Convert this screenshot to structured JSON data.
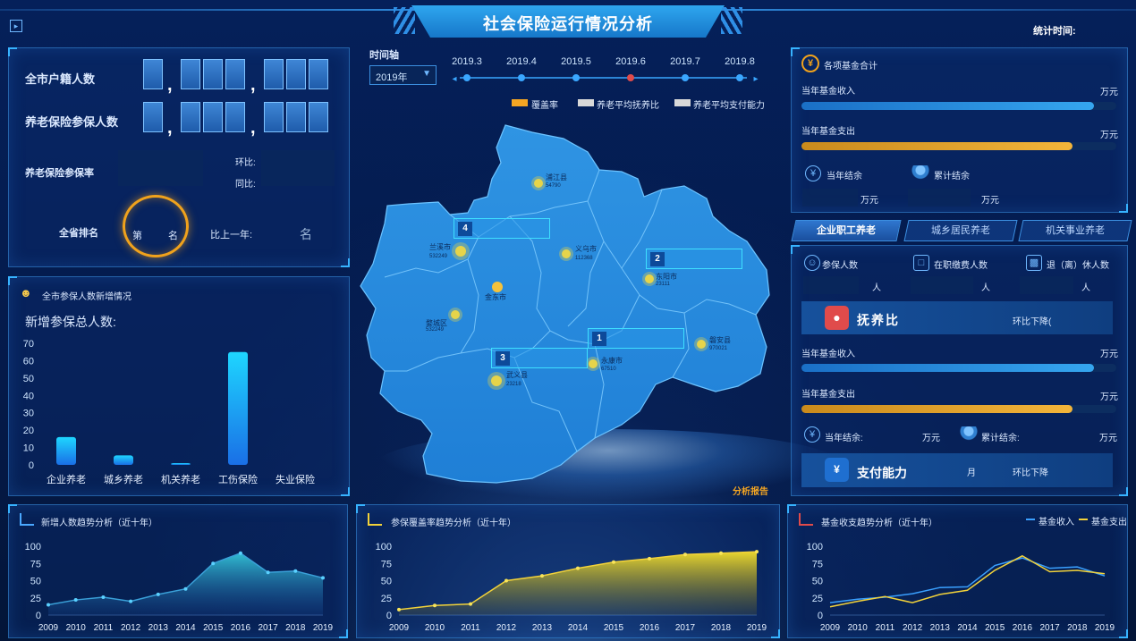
{
  "header": {
    "title": "社会保险运行情况分析",
    "stat_time_label": "统计时间:",
    "menu_icon": "menu-toggle-icon"
  },
  "left_top": {
    "residents_label": "全市户籍人数",
    "pension_insured_label": "养老保险参保人数",
    "coverage_label": "养老保险参保率",
    "mom_label": "环比:",
    "yoy_label": "同比:",
    "rank_label": "全省排名",
    "rank_prefix": "第",
    "rank_suffix": "名",
    "vs_last_year_label": "比上一年:",
    "vs_last_year_suffix": "名"
  },
  "left_mid": {
    "title": "全市参保人数新增情况",
    "total_label": "新增参保总人数:",
    "chart_data": {
      "type": "bar",
      "categories": [
        "企业养老",
        "城乡养老",
        "机关养老",
        "工伤保险",
        "失业保险"
      ],
      "values": [
        16,
        5.5,
        1,
        65,
        0
      ],
      "ylim": [
        0,
        70
      ],
      "yticks": [
        0,
        10,
        20,
        30,
        40,
        50,
        60,
        70
      ]
    }
  },
  "center": {
    "timeline_label": "时间轴",
    "year_select": "2019年",
    "timeline_months": [
      "2019.3",
      "2019.4",
      "2019.5",
      "2019.6",
      "2019.7",
      "2019.8"
    ],
    "active_month_index": 3,
    "legend": [
      {
        "label": "覆盖率",
        "color": "#f5a623"
      },
      {
        "label": "养老平均抚养比",
        "color": "#d9d9d9"
      },
      {
        "label": "养老平均支付能力",
        "color": "#d9d9d9"
      }
    ],
    "cities": [
      {
        "name": "浦江县",
        "value": "54790"
      },
      {
        "name": "兰溪市",
        "value": "532249"
      },
      {
        "name": "义乌市",
        "value": "112368"
      },
      {
        "name": "东阳市",
        "value": "23111"
      },
      {
        "name": "金东市",
        "value": ""
      },
      {
        "name": "婺城区",
        "value": "532249"
      },
      {
        "name": "磐安县",
        "value": "970021"
      },
      {
        "name": "永康市",
        "value": "67510"
      },
      {
        "name": "武义县",
        "value": "23218"
      }
    ],
    "rank_tags": [
      "4",
      "2",
      "1",
      "3"
    ],
    "report_link": "分析报告"
  },
  "right_top": {
    "title": "各项基金合计",
    "income_label": "当年基金收入",
    "expense_label": "当年基金支出",
    "unit": "万元",
    "income_pct": 0.93,
    "expense_pct": 0.86,
    "balance_label": "当年结余",
    "cumulative_label": "累计结余",
    "balance_unit": "万元",
    "cumulative_unit": "万元"
  },
  "right_tabs": [
    "企业职工养老",
    "城乡居民养老",
    "机关事业养老"
  ],
  "right_mid": {
    "insured_label": "参保人数",
    "contrib_label": "在职缴费人数",
    "retired_label": "退（离）休人数",
    "person_unit": "人",
    "dependency_label": "抚养比",
    "dependency_trend": "环比下降(",
    "income_label": "当年基金收入",
    "expense_label": "当年基金支出",
    "unit": "万元",
    "income_pct": 0.93,
    "expense_pct": 0.86,
    "balance_label": "当年结余:",
    "cumulative_label": "累计结余:",
    "payment_label": "支付能力",
    "payment_unit": "月",
    "payment_trend": "环比下降"
  },
  "bottom": {
    "chart1_title": "新增人数趋势分析（近十年）",
    "chart2_title": "参保覆盖率趋势分析（近十年）",
    "chart3_title": "基金收支趋势分析（近十年）",
    "chart3_legend": [
      "基金收入",
      "基金支出"
    ]
  },
  "chart_data": [
    {
      "type": "area",
      "title": "新增人数趋势分析（近十年）",
      "x": [
        "2009",
        "2010",
        "2011",
        "2012",
        "2013",
        "2014",
        "2015",
        "2016",
        "2017",
        "2018",
        "2019"
      ],
      "values": [
        15,
        22,
        26,
        20,
        30,
        38,
        75,
        90,
        62,
        64,
        54
      ],
      "ylim": [
        0,
        100
      ]
    },
    {
      "type": "area",
      "title": "参保覆盖率趋势分析（近十年）",
      "x": [
        "2009",
        "2010",
        "2011",
        "2012",
        "2013",
        "2014",
        "2015",
        "2016",
        "2017",
        "2018",
        "2019"
      ],
      "values": [
        8,
        14,
        16,
        50,
        57,
        68,
        77,
        82,
        88,
        90,
        92
      ],
      "ylim": [
        0,
        100
      ]
    },
    {
      "type": "line",
      "title": "基金收支趋势分析（近十年）",
      "x": [
        "2009",
        "2010",
        "2011",
        "2012",
        "2013",
        "2014",
        "2015",
        "2016",
        "2017",
        "2018",
        "2019"
      ],
      "series": [
        {
          "name": "基金收入",
          "values": [
            18,
            23,
            26,
            31,
            40,
            41,
            72,
            83,
            68,
            70,
            57
          ]
        },
        {
          "name": "基金支出",
          "values": [
            12,
            20,
            27,
            18,
            30,
            36,
            65,
            86,
            63,
            65,
            60
          ]
        }
      ],
      "ylim": [
        0,
        100
      ]
    },
    {
      "type": "bar",
      "categories": [
        "企业养老",
        "城乡养老",
        "机关养老",
        "工伤保险",
        "失业保险"
      ],
      "values": [
        16,
        5.5,
        1,
        65,
        0
      ],
      "ylim": [
        0,
        70
      ]
    }
  ]
}
